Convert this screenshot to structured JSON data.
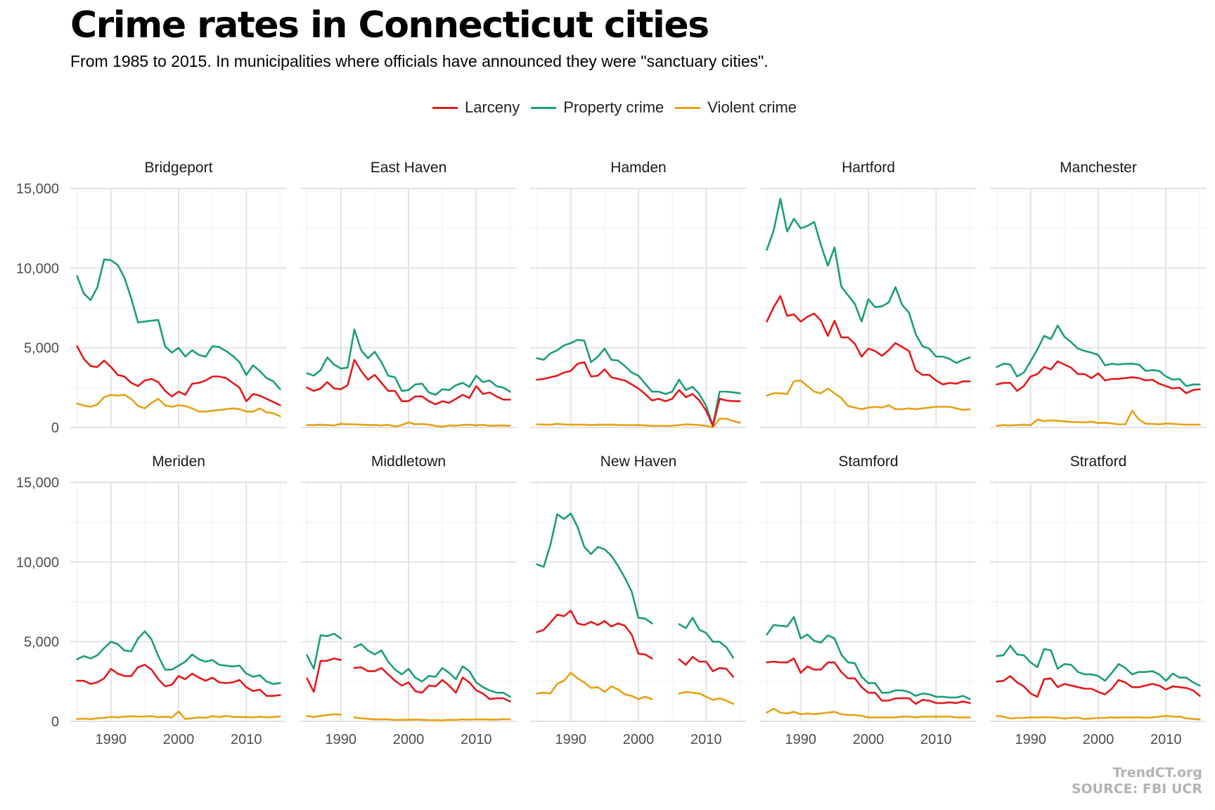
{
  "title": "Crime rates in Connecticut cities",
  "subtitle": "From 1985 to 2015. In municipalities where officials have announced they were \"sanctuary cities\".",
  "caption": {
    "line1": "TrendCT.org",
    "line2": "SOURCE: FBI UCR"
  },
  "colors": {
    "Larceny": "#e41a1c",
    "Property crime": "#1b9e77",
    "Violent crime": "#e6a117"
  },
  "chart_data": {
    "type": "line",
    "title": "Crime rates in Connecticut cities",
    "subtitle": "From 1985 to 2015. In municipalities where officials have announced they were \"sanctuary cities\".",
    "xlabel": "",
    "ylabel": "",
    "x_range": [
      1984,
      2016
    ],
    "ylim": [
      0,
      15000
    ],
    "x_ticks": [
      1990,
      2000,
      2010
    ],
    "x_tick_labels": [
      "1990",
      "2000",
      "2010"
    ],
    "y_ticks": [
      0,
      5000,
      10000,
      15000
    ],
    "y_tick_labels": [
      "0",
      "5,000",
      "10,000",
      "15,000"
    ],
    "legend": {
      "position": "top",
      "entries": [
        "Larceny",
        "Property crime",
        "Violent crime"
      ]
    },
    "layout": {
      "rows": 2,
      "cols": 5
    },
    "panels": [
      {
        "name": "Bridgeport",
        "start": 1985,
        "series": {
          "Larceny": [
            5100,
            4300,
            3850,
            3800,
            4200,
            3800,
            3300,
            3200,
            2800,
            2600,
            2950,
            3050,
            2850,
            2300,
            1950,
            2250,
            2050,
            2750,
            2800,
            2950,
            3200,
            3200,
            3100,
            2800,
            2500,
            1650,
            2100,
            2000,
            1800,
            1600,
            1400
          ],
          "Property crime": [
            9500,
            8400,
            8000,
            8800,
            10550,
            10500,
            10200,
            9400,
            8100,
            6600,
            6650,
            6700,
            6750,
            5100,
            4700,
            5000,
            4450,
            4850,
            4550,
            4450,
            5100,
            5050,
            4800,
            4500,
            4100,
            3300,
            3900,
            3550,
            3100,
            2900,
            2400
          ],
          "Violent crime": [
            1500,
            1380,
            1300,
            1450,
            1900,
            2050,
            2000,
            2050,
            1800,
            1350,
            1200,
            1550,
            1800,
            1400,
            1300,
            1400,
            1350,
            1200,
            1000,
            1000,
            1050,
            1100,
            1150,
            1200,
            1150,
            1000,
            1000,
            1200,
            950,
            900,
            700
          ]
        }
      },
      {
        "name": "East Haven",
        "start": 1985,
        "series": {
          "Larceny": [
            2500,
            2300,
            2450,
            2850,
            2450,
            2400,
            2650,
            4250,
            3550,
            3000,
            3300,
            2800,
            2300,
            2300,
            1650,
            1650,
            1950,
            1950,
            1650,
            1450,
            1650,
            1550,
            1800,
            2050,
            1850,
            2600,
            2100,
            2200,
            1950,
            1750,
            1750
          ],
          "Property crime": [
            3400,
            3250,
            3600,
            4400,
            3950,
            3700,
            3750,
            6150,
            4850,
            4350,
            4750,
            4100,
            3250,
            3150,
            2300,
            2350,
            2700,
            2750,
            2200,
            2050,
            2400,
            2350,
            2650,
            2800,
            2550,
            3250,
            2850,
            2950,
            2600,
            2500,
            2250
          ],
          "Violent crime": [
            150,
            150,
            180,
            160,
            130,
            230,
            200,
            200,
            180,
            160,
            160,
            130,
            170,
            60,
            150,
            320,
            200,
            220,
            180,
            100,
            50,
            130,
            110,
            160,
            180,
            130,
            170,
            100,
            120,
            130,
            110
          ]
        }
      },
      {
        "name": "Hamden",
        "start": 1985,
        "series": {
          "Larceny": [
            3000,
            3050,
            3150,
            3250,
            3450,
            3550,
            4000,
            4100,
            3200,
            3250,
            3650,
            3150,
            3050,
            2950,
            2700,
            2450,
            2100,
            1700,
            1800,
            1650,
            1800,
            2350,
            1900,
            2100,
            1700,
            1050,
            100,
            1800,
            1700,
            1650,
            1650
          ],
          "Property crime": [
            4350,
            4250,
            4650,
            4850,
            5150,
            5300,
            5500,
            5450,
            4100,
            4450,
            4950,
            4250,
            4200,
            3850,
            3450,
            3250,
            2750,
            2250,
            2250,
            2100,
            2250,
            3000,
            2350,
            2550,
            2100,
            1350,
            120,
            2250,
            2250,
            2200,
            2150
          ],
          "Violent crime": [
            200,
            180,
            170,
            230,
            190,
            170,
            180,
            180,
            150,
            180,
            170,
            180,
            160,
            150,
            140,
            160,
            130,
            100,
            110,
            100,
            110,
            150,
            200,
            180,
            150,
            100,
            20,
            550,
            550,
            400,
            300
          ]
        }
      },
      {
        "name": "Hartford",
        "start": 1985,
        "series": {
          "Larceny": [
            6650,
            7550,
            8250,
            7000,
            7100,
            6650,
            6950,
            7150,
            6700,
            5750,
            6700,
            5650,
            5650,
            5250,
            4450,
            4950,
            4800,
            4500,
            4850,
            5300,
            5050,
            4800,
            3600,
            3300,
            3300,
            2950,
            2700,
            2800,
            2750,
            2900,
            2900
          ],
          "Property crime": [
            11150,
            12350,
            14350,
            12300,
            13100,
            12500,
            12650,
            12900,
            11450,
            10150,
            11300,
            8850,
            8300,
            7750,
            6650,
            8050,
            7550,
            7600,
            7850,
            8800,
            7700,
            7200,
            5850,
            5100,
            4950,
            4450,
            4450,
            4300,
            4050,
            4250,
            4400
          ],
          "Violent crime": [
            2000,
            2150,
            2150,
            2100,
            2900,
            2950,
            2600,
            2250,
            2150,
            2450,
            2150,
            1850,
            1350,
            1250,
            1150,
            1250,
            1300,
            1250,
            1400,
            1150,
            1150,
            1200,
            1150,
            1200,
            1250,
            1300,
            1300,
            1300,
            1200,
            1100,
            1150
          ]
        }
      },
      {
        "name": "Manchester",
        "start": 1985,
        "series": {
          "Larceny": [
            2700,
            2800,
            2800,
            2300,
            2600,
            3200,
            3350,
            3800,
            3650,
            4150,
            3950,
            3750,
            3350,
            3350,
            3100,
            3400,
            2950,
            3050,
            3050,
            3100,
            3150,
            3100,
            2950,
            3000,
            2750,
            2600,
            2450,
            2500,
            2150,
            2350,
            2400
          ],
          "Property crime": [
            3800,
            4000,
            3950,
            3200,
            3450,
            4150,
            4900,
            5750,
            5550,
            6400,
            5700,
            5350,
            4950,
            4800,
            4700,
            4550,
            3900,
            4000,
            3950,
            4000,
            4000,
            3950,
            3550,
            3600,
            3550,
            3200,
            3000,
            3050,
            2600,
            2700,
            2700
          ],
          "Violent crime": [
            100,
            150,
            130,
            150,
            180,
            140,
            500,
            400,
            450,
            420,
            380,
            350,
            340,
            320,
            360,
            280,
            300,
            250,
            200,
            200,
            1050,
            500,
            240,
            230,
            200,
            250,
            230,
            200,
            180,
            180,
            180
          ]
        }
      },
      {
        "name": "Meriden",
        "start": 1985,
        "series": {
          "Larceny": [
            2550,
            2550,
            2350,
            2450,
            2700,
            3300,
            3000,
            2850,
            2850,
            3400,
            3550,
            3250,
            2650,
            2200,
            2300,
            2850,
            2650,
            3000,
            2750,
            2550,
            2750,
            2450,
            2400,
            2450,
            2600,
            2150,
            1900,
            2000,
            1600,
            1600,
            1650
          ],
          "Property crime": [
            3900,
            4100,
            3950,
            4150,
            4600,
            5000,
            4850,
            4450,
            4400,
            5200,
            5650,
            5150,
            4100,
            3250,
            3250,
            3500,
            3750,
            4200,
            3900,
            3750,
            3850,
            3550,
            3500,
            3450,
            3500,
            3000,
            2800,
            2900,
            2500,
            2350,
            2400
          ],
          "Violent crime": [
            150,
            170,
            140,
            200,
            230,
            280,
            250,
            300,
            320,
            300,
            310,
            330,
            260,
            300,
            250,
            620,
            150,
            200,
            250,
            230,
            330,
            280,
            350,
            280,
            280,
            280,
            250,
            300,
            250,
            280,
            310
          ]
        }
      },
      {
        "name": "Middletown",
        "start": 1985,
        "series": {
          "Larceny": [
            2700,
            1850,
            3800,
            3800,
            3950,
            3850,
            null,
            3350,
            3400,
            3150,
            3150,
            3350,
            2950,
            2550,
            2250,
            2450,
            1900,
            1800,
            2250,
            2200,
            2600,
            2250,
            1800,
            2750,
            2450,
            1950,
            1750,
            1400,
            1450,
            1450,
            1250
          ],
          "Property crime": [
            4150,
            3300,
            5400,
            5350,
            5500,
            5200,
            null,
            4650,
            4850,
            4450,
            4200,
            4450,
            3750,
            3250,
            2950,
            3300,
            2750,
            2500,
            2850,
            2800,
            3350,
            3050,
            2650,
            3450,
            3150,
            2450,
            2150,
            1950,
            1800,
            1800,
            1550
          ],
          "Violent crime": [
            350,
            280,
            350,
            400,
            450,
            430,
            null,
            250,
            200,
            160,
            130,
            130,
            130,
            90,
            100,
            100,
            120,
            100,
            80,
            80,
            60,
            100,
            90,
            130,
            110,
            130,
            130,
            120,
            110,
            140,
            130
          ]
        }
      },
      {
        "name": "New Haven",
        "start": 1985,
        "series": {
          "Larceny": [
            5600,
            5750,
            6200,
            6700,
            6600,
            6950,
            6150,
            6050,
            6250,
            6050,
            6300,
            5950,
            6150,
            6000,
            5450,
            4250,
            4200,
            3950,
            null,
            null,
            null,
            3900,
            3550,
            4050,
            3750,
            3750,
            3150,
            3350,
            3300,
            2800
          ],
          "Property crime": [
            9850,
            9700,
            11100,
            13000,
            12700,
            13050,
            12200,
            10950,
            10500,
            10950,
            10800,
            10400,
            9750,
            9000,
            8150,
            6500,
            6450,
            6150,
            null,
            null,
            null,
            6100,
            5850,
            6500,
            5750,
            5550,
            5000,
            5000,
            4650,
            4000
          ],
          "Violent crime": [
            1750,
            1800,
            1750,
            2350,
            2550,
            3050,
            2700,
            2450,
            2100,
            2150,
            1850,
            2200,
            2000,
            1700,
            1600,
            1400,
            1550,
            1400,
            null,
            null,
            null,
            1750,
            1850,
            1800,
            1750,
            1550,
            1350,
            1450,
            1300,
            1100
          ]
        }
      },
      {
        "name": "Stamford",
        "start": 1985,
        "series": {
          "Larceny": [
            3700,
            3750,
            3700,
            3700,
            3950,
            3050,
            3450,
            3250,
            3250,
            3700,
            3700,
            3100,
            2700,
            2700,
            2150,
            1800,
            1800,
            1300,
            1300,
            1450,
            1450,
            1450,
            1100,
            1350,
            1300,
            1150,
            1150,
            1200,
            1150,
            1250,
            1150
          ],
          "Property crime": [
            5450,
            6050,
            6000,
            5950,
            6550,
            5200,
            5450,
            5050,
            4950,
            5400,
            5200,
            4200,
            3700,
            3650,
            2800,
            2400,
            2400,
            1800,
            1800,
            1950,
            1950,
            1850,
            1600,
            1750,
            1700,
            1550,
            1550,
            1500,
            1500,
            1600,
            1400
          ],
          "Violent crime": [
            550,
            800,
            550,
            500,
            600,
            450,
            500,
            450,
            500,
            550,
            600,
            450,
            400,
            400,
            350,
            250,
            250,
            250,
            250,
            250,
            300,
            300,
            250,
            300,
            300,
            300,
            300,
            300,
            250,
            250,
            250
          ]
        }
      },
      {
        "name": "Stratford",
        "start": 1985,
        "series": {
          "Larceny": [
            2500,
            2550,
            2850,
            2450,
            2200,
            1750,
            1550,
            2650,
            2700,
            2150,
            2350,
            2250,
            2150,
            2050,
            2050,
            1850,
            1700,
            2050,
            2600,
            2450,
            2150,
            2150,
            2250,
            2350,
            2250,
            2000,
            2200,
            2150,
            2100,
            1950,
            1600
          ],
          "Property crime": [
            4100,
            4150,
            4750,
            4200,
            4150,
            3700,
            3400,
            4550,
            4450,
            3300,
            3600,
            3550,
            3100,
            2950,
            2950,
            2850,
            2550,
            3050,
            3600,
            3350,
            2950,
            3100,
            3100,
            3150,
            2950,
            2550,
            3000,
            2750,
            2750,
            2450,
            2250
          ],
          "Violent crime": [
            350,
            300,
            180,
            220,
            220,
            250,
            250,
            260,
            250,
            230,
            180,
            220,
            240,
            150,
            180,
            220,
            220,
            250,
            240,
            250,
            240,
            260,
            230,
            250,
            300,
            350,
            300,
            300,
            200,
            150,
            130
          ]
        }
      }
    ]
  }
}
